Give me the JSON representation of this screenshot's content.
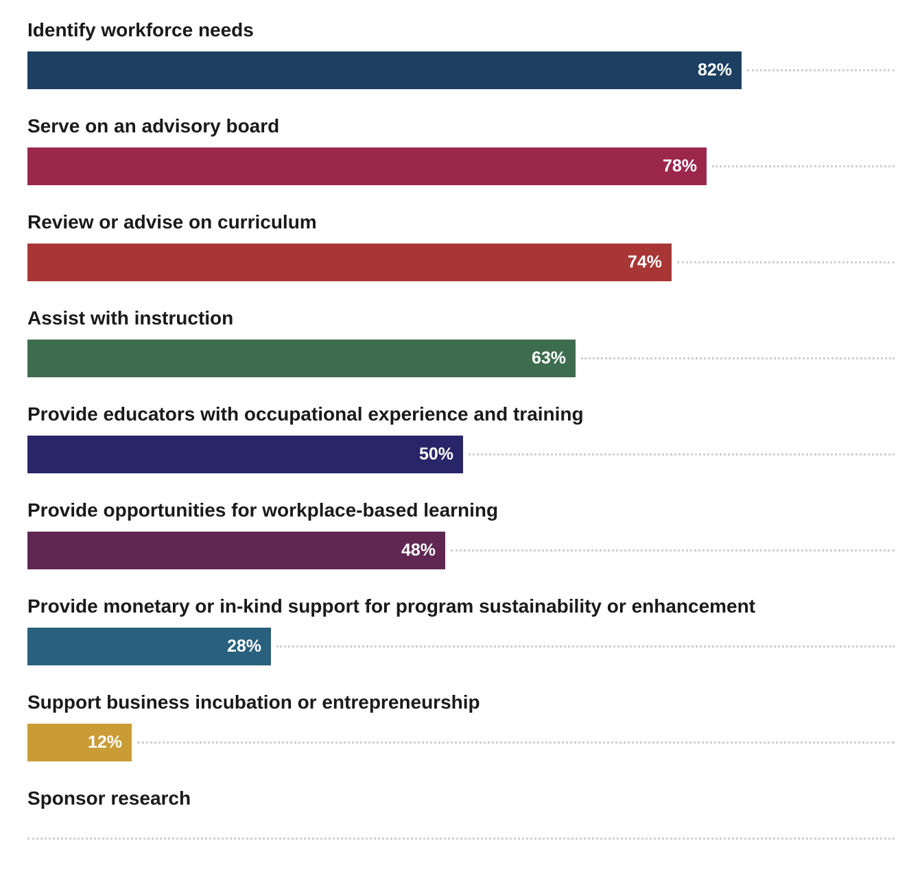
{
  "chart_data": {
    "type": "bar",
    "orientation": "horizontal",
    "title": "",
    "xlabel": "",
    "ylabel": "",
    "xlim": [
      0,
      100
    ],
    "grid": false,
    "legend": "none",
    "categories": [
      "Identify workforce needs",
      "Serve on an advisory board",
      "Review or advise on curriculum",
      "Assist with instruction",
      "Provide educators with occupational experience and training",
      "Provide opportunities for workplace-based learning",
      "Provide monetary or in-kind support for program sustainability or enhancement",
      "Support business incubation or entrepreneurship",
      "Sponsor research"
    ],
    "values": [
      82,
      78,
      74,
      63,
      50,
      48,
      28,
      12,
      0
    ],
    "value_labels": [
      "82%",
      "78%",
      "74%",
      "63%",
      "50%",
      "48%",
      "28%",
      "12%",
      ""
    ],
    "colors": [
      "#1d3f61",
      "#9b274d",
      "#a83634",
      "#3d6d4e",
      "#292569",
      "#612753",
      "#28607d",
      "#c99c36",
      "#cccccc"
    ]
  }
}
